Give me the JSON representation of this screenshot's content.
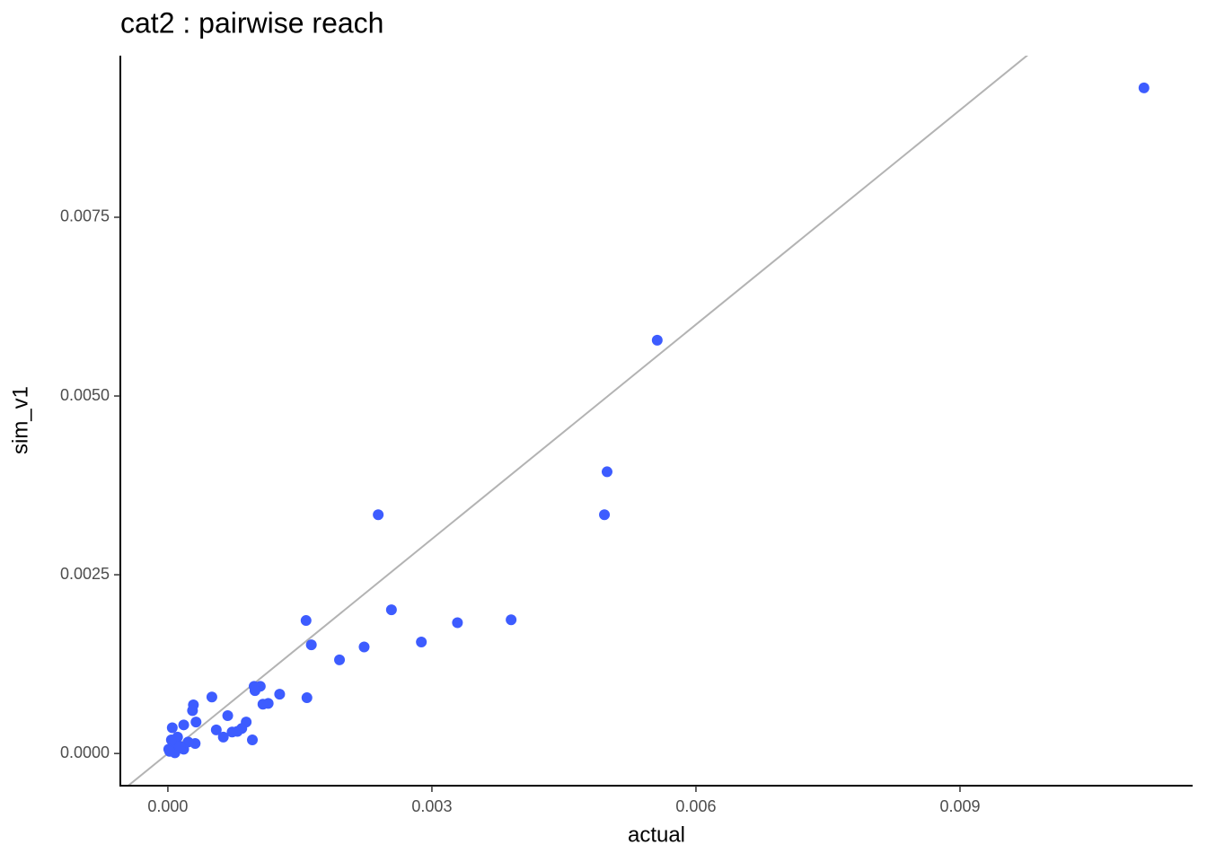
{
  "chart_data": {
    "type": "scatter",
    "title": "cat2 : pairwise reach",
    "x_label": "actual",
    "y_label": "sim_v1",
    "color": "#3d5cff",
    "identity_line": true,
    "identity_line_color": "#b3b3b3",
    "grid": false,
    "xlim": [
      -0.00054,
      0.011643
    ],
    "ylim": [
      -0.00045,
      0.00976
    ],
    "xticks": [
      {
        "value": 0,
        "label": "0.000"
      },
      {
        "value": 0.003,
        "label": "0.003"
      },
      {
        "value": 0.006,
        "label": "0.006"
      },
      {
        "value": 0.009,
        "label": "0.009"
      }
    ],
    "yticks": [
      {
        "value": 0,
        "label": "0.0000"
      },
      {
        "value": 0.0025,
        "label": "0.0025"
      },
      {
        "value": 0.005,
        "label": "0.0050"
      },
      {
        "value": 0.0075,
        "label": "0.0075"
      }
    ],
    "x": [
      0.01109,
      0.00556,
      0.00499,
      0.00496,
      0.00239,
      0.00254,
      0.00157,
      0.0039,
      0.00329,
      0.00163,
      0.00288,
      0.00223,
      0.00195,
      0.00158,
      0.00127,
      0.00114,
      0.00108,
      0.00105,
      0.00098,
      0.00099,
      0.0005,
      0.00096,
      0.00089,
      0.00084,
      0.00079,
      0.00073,
      0.00068,
      0.00063,
      0.00055,
      0.00029,
      0.00028,
      0.00032,
      0.00031,
      0.00018,
      0.00023,
      0.00018,
      0.00011,
      9e-05,
      5e-05,
      4e-05,
      8e-05,
      1e-05,
      2e-05,
      0.00014
    ],
    "values": [
      0.00931,
      0.00578,
      0.00394,
      0.00334,
      0.00334,
      0.00201,
      0.00186,
      0.00187,
      0.00183,
      0.00152,
      0.00156,
      0.00149,
      0.00131,
      0.00078,
      0.00083,
      0.0007,
      0.00069,
      0.00094,
      0.00094,
      0.00088,
      0.00079,
      0.00019,
      0.00044,
      0.00035,
      0.00031,
      0.0003,
      0.00053,
      0.00023,
      0.00033,
      0.00068,
      0.0006,
      0.00044,
      0.00014,
      0.0004,
      0.00016,
      6e-05,
      0.00023,
      0.00013,
      0.00036,
      0.00019,
      1e-05,
      6e-05,
      3e-05,
      0.0001
    ]
  }
}
